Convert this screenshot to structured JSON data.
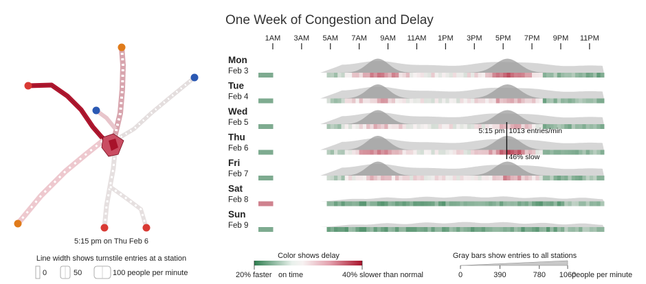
{
  "title": "One Week of Congestion and Delay",
  "chart_data": {
    "type": "area",
    "hour_labels": [
      "1AM",
      "3AM",
      "5AM",
      "7AM",
      "9AM",
      "11AM",
      "1PM",
      "3PM",
      "5PM",
      "7PM",
      "9PM",
      "11PM"
    ],
    "hours_range": [
      0,
      24
    ],
    "entries_max": 1060,
    "days": [
      {
        "name": "Mon",
        "date": "Feb 3",
        "weekday": true,
        "delay_level": 1.0
      },
      {
        "name": "Tue",
        "date": "Feb 4",
        "weekday": true,
        "delay_level": 0.55
      },
      {
        "name": "Wed",
        "date": "Feb 5",
        "weekday": true,
        "delay_level": 0.35
      },
      {
        "name": "Thu",
        "date": "Feb 6",
        "weekday": true,
        "delay_level": 1.0
      },
      {
        "name": "Fri",
        "date": "Feb 7",
        "weekday": true,
        "delay_level": 0.5
      },
      {
        "name": "Sat",
        "date": "Feb 8",
        "weekday": false,
        "delay_level": 0.1
      },
      {
        "name": "Sun",
        "date": "Feb 9",
        "weekday": false,
        "delay_level": 0.1
      }
    ],
    "annotation": {
      "time_label": "5:15 pm",
      "entries_label": "1013 entries/min",
      "delay_label": "46% slow",
      "day": "Thu",
      "hour": 17.25,
      "entries": 1013,
      "delay_pct": 46
    }
  },
  "map": {
    "caption": "5:15 pm on Thu Feb 6"
  },
  "line_width_legend": {
    "title": "Line width shows turnstile entries at a station",
    "values": [
      "0",
      "50",
      "100 people per minute"
    ]
  },
  "color_legend": {
    "title": "Color shows delay",
    "left": "20% faster",
    "middle": "on time",
    "right": "40% slower than normal",
    "colors": {
      "fast": "#2e7d4f",
      "neutral": "#f5f0f0",
      "slow": "#a8122a"
    }
  },
  "gray_legend": {
    "title": "Gray bars show entries to all stations",
    "ticks": [
      "0",
      "390",
      "780",
      "1060"
    ],
    "unit": "people per minute"
  }
}
